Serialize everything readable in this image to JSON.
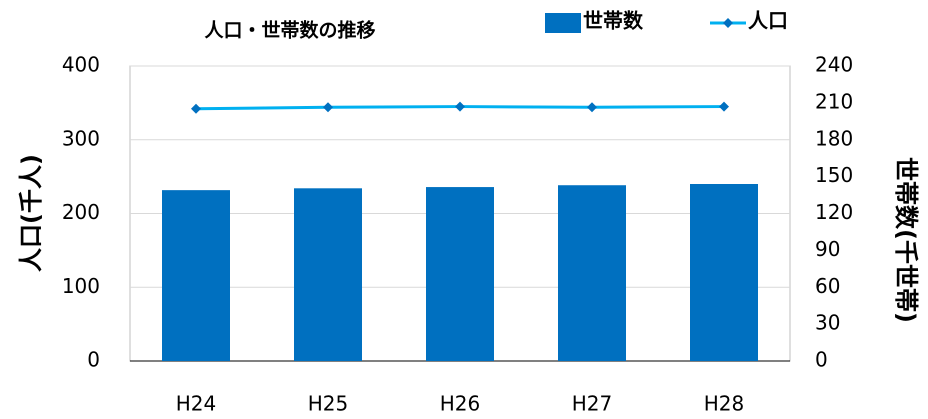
{
  "chart_data": {
    "type": "bar_line",
    "title": "人口・世帯数の推移",
    "categories": [
      "H24",
      "H25",
      "H26",
      "H27",
      "H28"
    ],
    "series": [
      {
        "name": "世帯数",
        "color": "#0070c0",
        "axis": "y2",
        "type": "bar",
        "values": [
          139,
          140.5,
          141.5,
          143,
          144
        ]
      },
      {
        "name": "人口",
        "color": "#00b0f0",
        "axis": "y",
        "type": "line",
        "values": [
          342,
          344,
          345,
          344,
          345
        ]
      }
    ],
    "ylabel": "人口(千人)",
    "y2label": "世帯数(千世帯)",
    "ylim": [
      0,
      400
    ],
    "yticks": [
      0,
      100,
      200,
      300,
      400
    ],
    "y2lim": [
      0,
      240
    ],
    "y2ticks": [
      0,
      30,
      60,
      90,
      120,
      150,
      180,
      210,
      240
    ],
    "grid": true,
    "legend": "top-right"
  }
}
